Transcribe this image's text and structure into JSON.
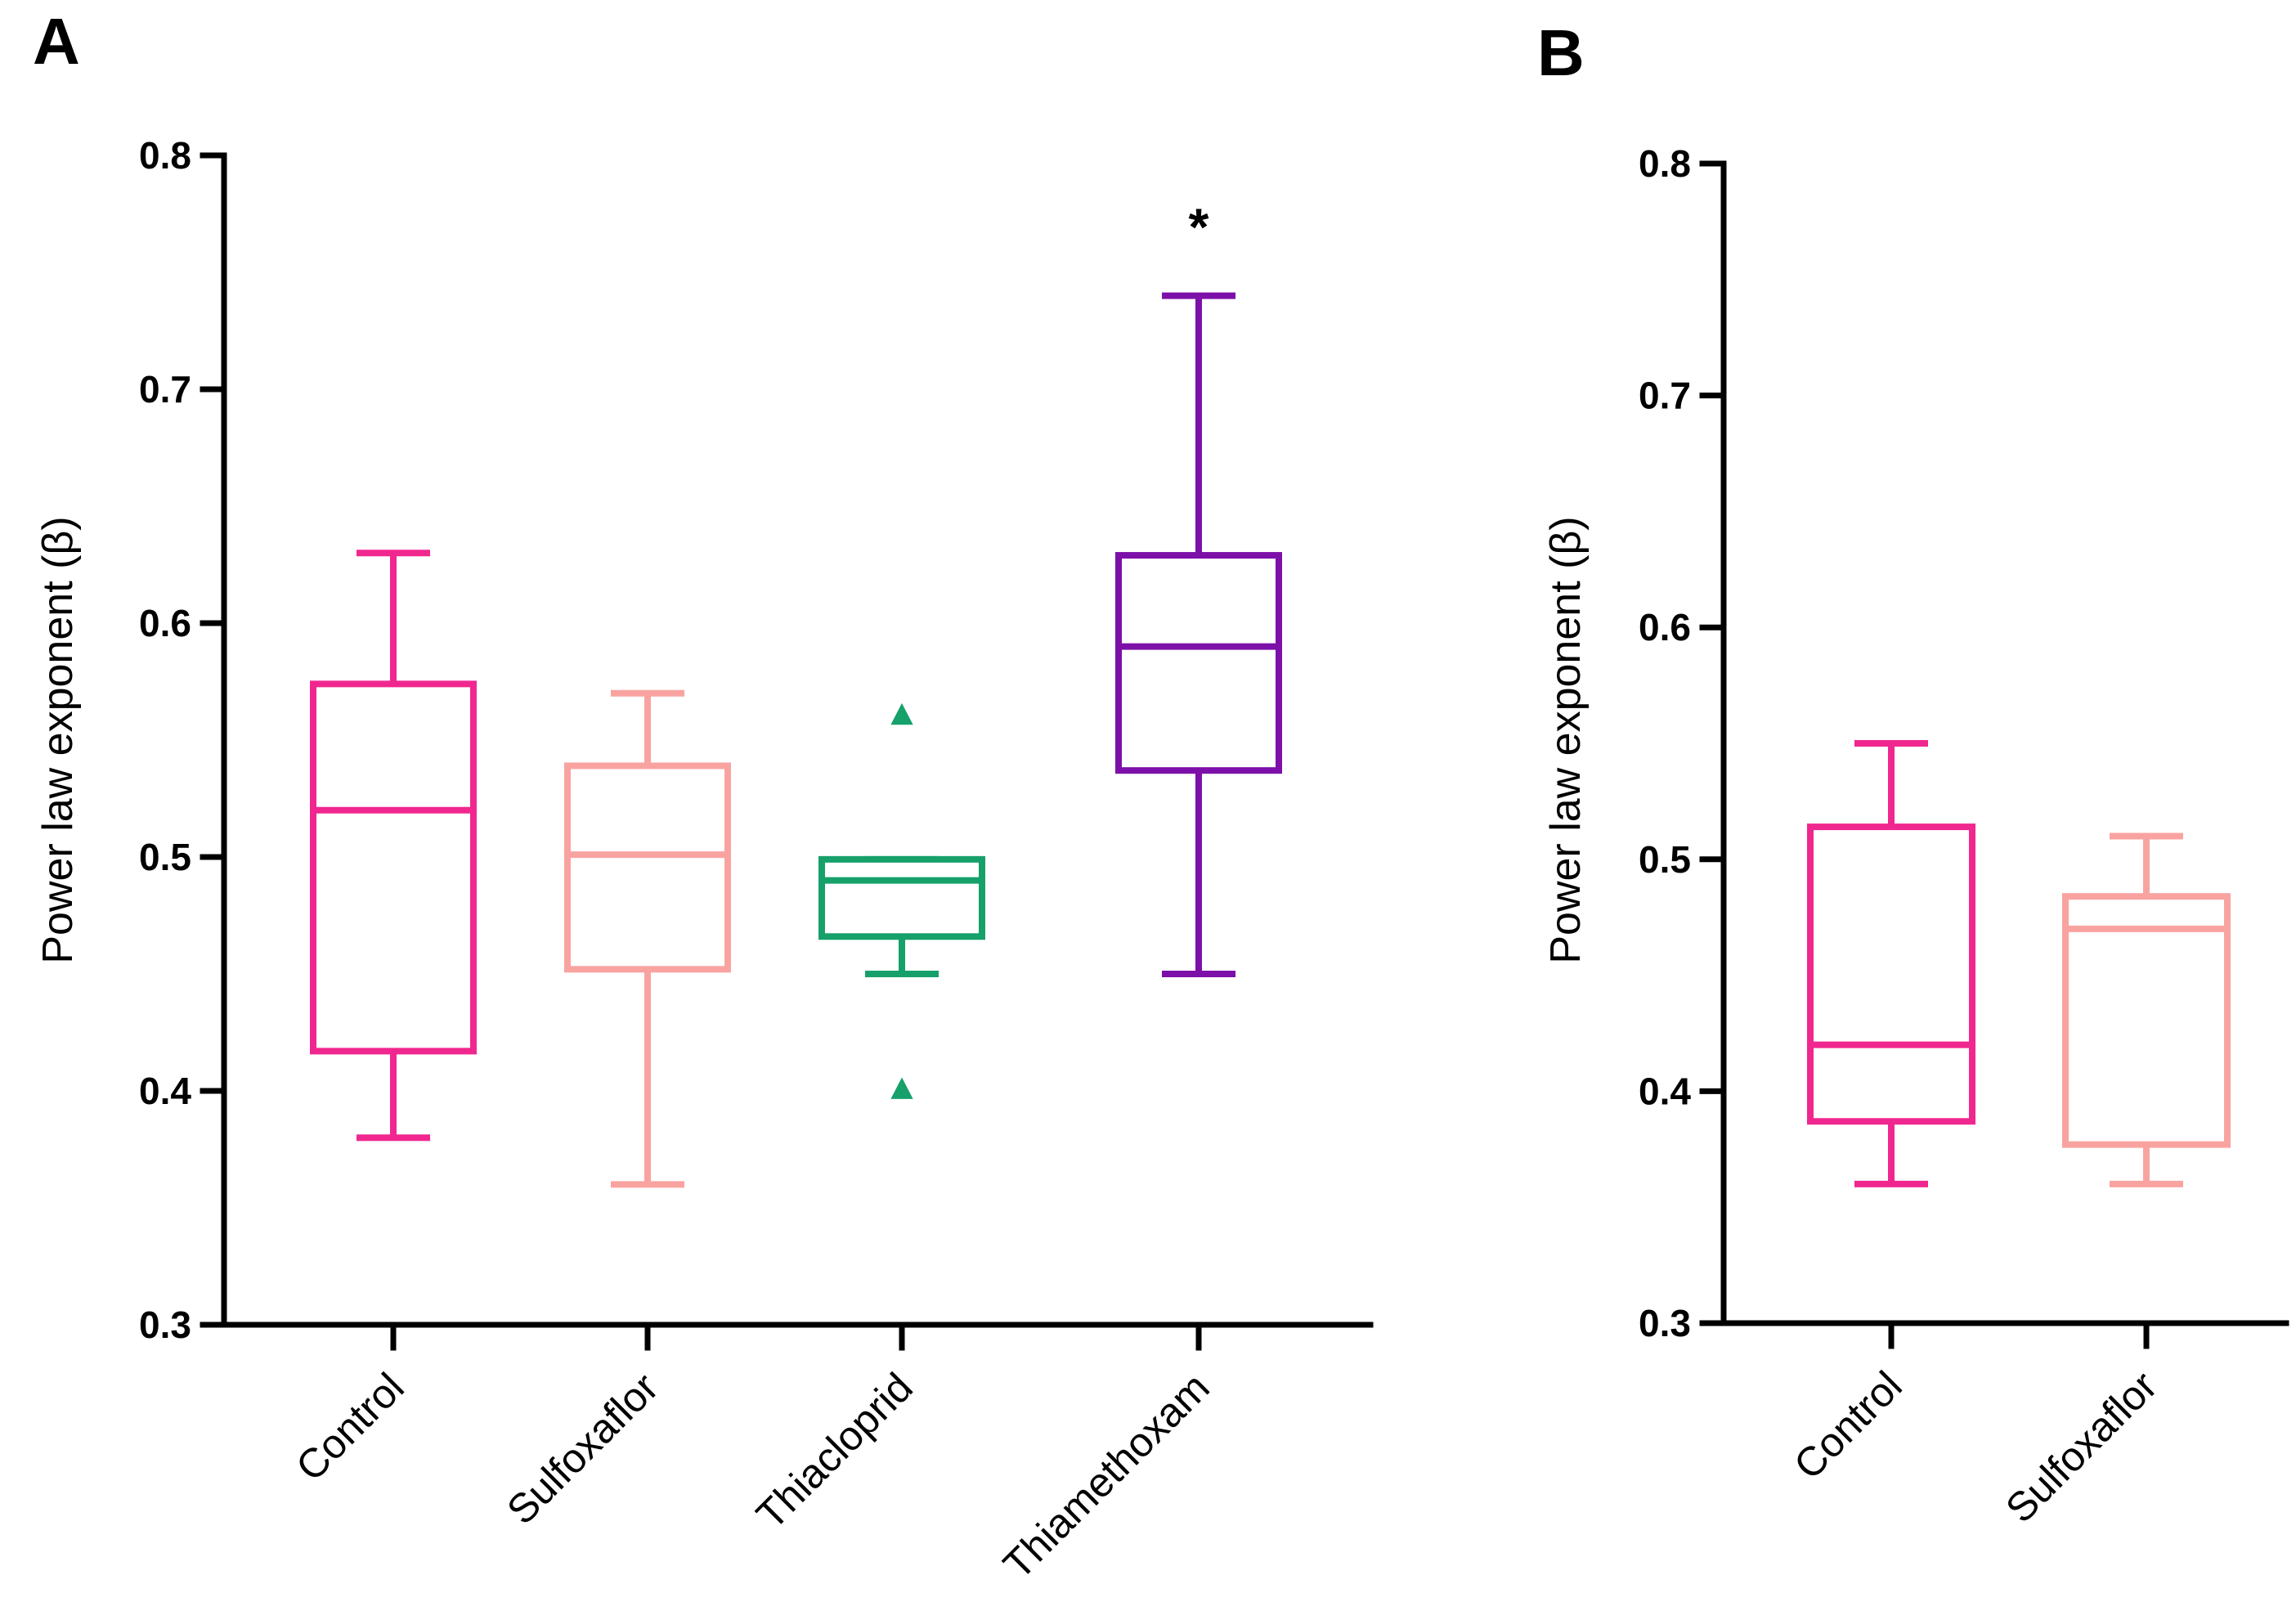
{
  "chart_data": [
    {
      "panel": "A",
      "type": "box",
      "title": "",
      "ylabel": "Power law exponent (β)",
      "xlabel": "",
      "ylim": [
        0.3,
        0.8
      ],
      "yticks": [
        0.3,
        0.4,
        0.5,
        0.6,
        0.7,
        0.8
      ],
      "ytick_labels": [
        "0.3",
        "0.4",
        "0.5",
        "0.6",
        "0.7",
        "0.8"
      ],
      "categories": [
        "Control",
        "Sulfoxaflor",
        "Thiacloprid",
        "Thiamethoxam"
      ],
      "boxes": [
        {
          "name": "Control",
          "color": "#f0278f",
          "whisker_low": 0.38,
          "q1": 0.417,
          "median": 0.52,
          "q3": 0.574,
          "whisker_high": 0.63,
          "outliers": [],
          "annotation": ""
        },
        {
          "name": "Sulfoxaflor",
          "color": "#f9a3a1",
          "whisker_low": 0.36,
          "q1": 0.452,
          "median": 0.501,
          "q3": 0.539,
          "whisker_high": 0.57,
          "outliers": [],
          "annotation": ""
        },
        {
          "name": "Thiacloprid",
          "color": "#16a06a",
          "whisker_low": 0.45,
          "q1": 0.466,
          "median": 0.49,
          "q3": 0.499,
          "whisker_high": 0.499,
          "outliers": [
            0.56,
            0.4
          ],
          "annotation": ""
        },
        {
          "name": "Thiamethoxam",
          "color": "#7c10a8",
          "whisker_low": 0.45,
          "q1": 0.537,
          "median": 0.59,
          "q3": 0.629,
          "whisker_high": 0.74,
          "outliers": [],
          "annotation": "*"
        }
      ]
    },
    {
      "panel": "B",
      "type": "box",
      "title": "",
      "ylabel": "Power law exponent (β)",
      "xlabel": "",
      "ylim": [
        0.3,
        0.8
      ],
      "yticks": [
        0.3,
        0.4,
        0.5,
        0.6,
        0.7,
        0.8
      ],
      "ytick_labels": [
        "0.3",
        "0.4",
        "0.5",
        "0.6",
        "0.7",
        "0.8"
      ],
      "categories": [
        "Control",
        "Sulfoxaflor"
      ],
      "boxes": [
        {
          "name": "Control",
          "color": "#f0278f",
          "whisker_low": 0.36,
          "q1": 0.387,
          "median": 0.42,
          "q3": 0.514,
          "whisker_high": 0.55,
          "outliers": [],
          "annotation": ""
        },
        {
          "name": "Sulfoxaflor",
          "color": "#f9a3a1",
          "whisker_low": 0.36,
          "q1": 0.377,
          "median": 0.47,
          "q3": 0.484,
          "whisker_high": 0.51,
          "outliers": [],
          "annotation": ""
        }
      ]
    }
  ]
}
